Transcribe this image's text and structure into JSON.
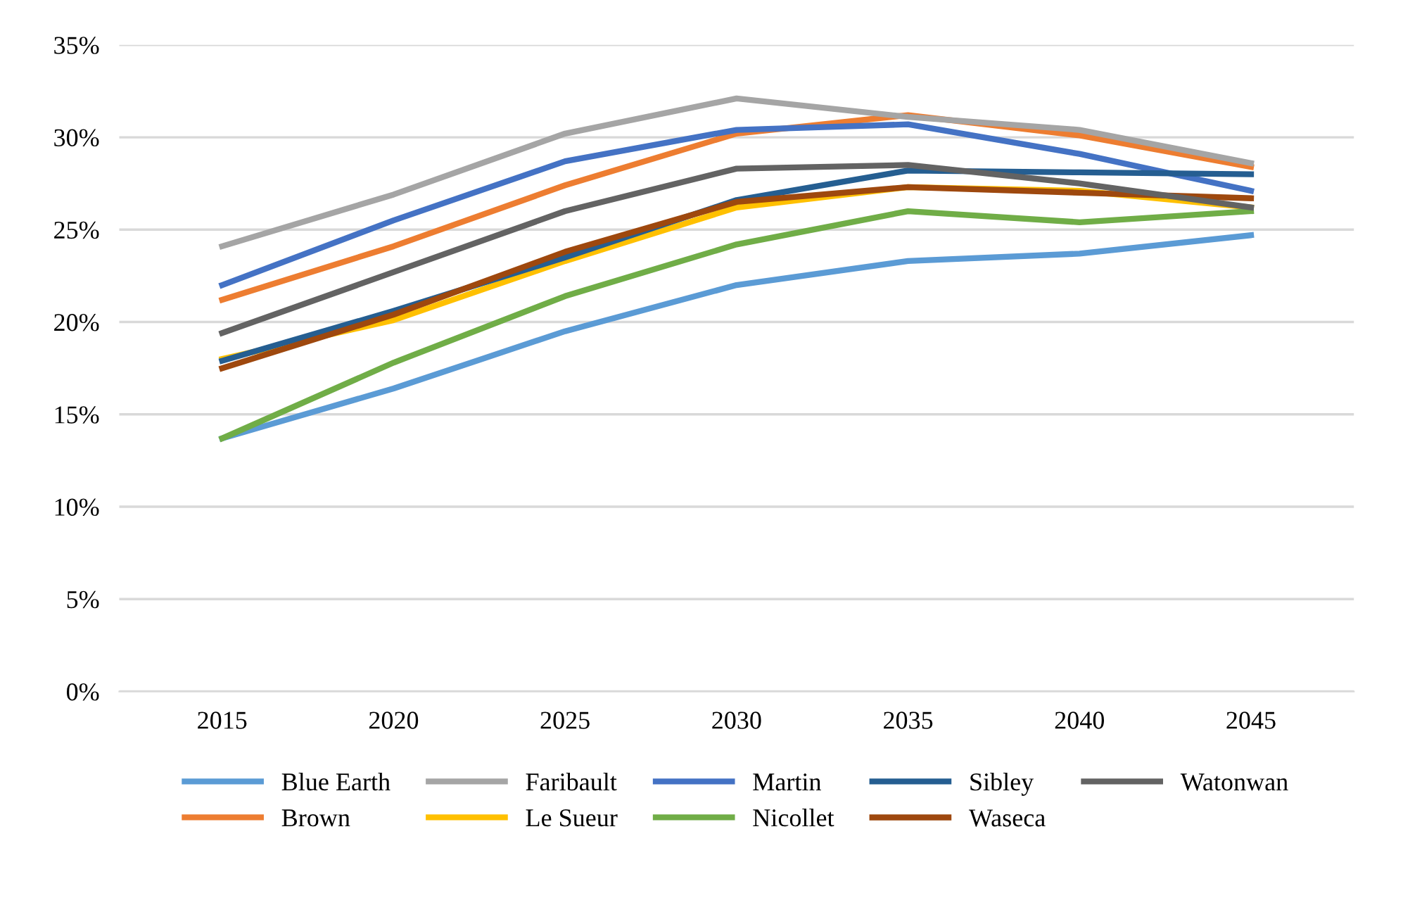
{
  "chart_data": {
    "type": "line",
    "categories": [
      "2015",
      "2020",
      "2025",
      "2030",
      "2035",
      "2040",
      "2045"
    ],
    "ylim": [
      0,
      35
    ],
    "yticks": [
      {
        "value": 0,
        "label": "0%"
      },
      {
        "value": 5,
        "label": "5%"
      },
      {
        "value": 10,
        "label": "10%"
      },
      {
        "value": 15,
        "label": "15%"
      },
      {
        "value": 20,
        "label": "20%"
      },
      {
        "value": 25,
        "label": "25%"
      },
      {
        "value": 30,
        "label": "30%"
      },
      {
        "value": 35,
        "label": "35%"
      }
    ],
    "grid": "y",
    "legend": "bottom",
    "marker": "none",
    "line_style": "solid",
    "series": [
      {
        "name": "Blue Earth",
        "color": "#5b9bd5",
        "values": [
          13.7,
          16.4,
          19.5,
          22.0,
          23.3,
          23.7,
          24.7
        ]
      },
      {
        "name": "Brown",
        "color": "#ed7d31",
        "values": [
          21.2,
          24.1,
          27.4,
          30.2,
          31.2,
          30.1,
          28.4
        ]
      },
      {
        "name": "Faribault",
        "color": "#a5a5a5",
        "values": [
          24.1,
          26.9,
          30.2,
          32.1,
          31.1,
          30.4,
          28.6
        ]
      },
      {
        "name": "Le Sueur",
        "color": "#ffc000",
        "values": [
          18.0,
          20.1,
          23.3,
          26.2,
          27.3,
          27.1,
          26.2
        ]
      },
      {
        "name": "Martin",
        "color": "#4472c4",
        "values": [
          22.0,
          25.5,
          28.7,
          30.4,
          30.7,
          29.1,
          27.1
        ]
      },
      {
        "name": "Nicollet",
        "color": "#70ad47",
        "values": [
          13.7,
          17.8,
          21.4,
          24.2,
          26.0,
          25.4,
          26.0
        ]
      },
      {
        "name": "Sibley",
        "color": "#255e91",
        "values": [
          17.9,
          20.6,
          23.5,
          26.6,
          28.2,
          28.1,
          28.0
        ]
      },
      {
        "name": "Waseca",
        "color": "#9e480e",
        "values": [
          17.5,
          20.4,
          23.8,
          26.5,
          27.3,
          27.0,
          26.7
        ]
      },
      {
        "name": "Watonwan",
        "color": "#636363",
        "values": [
          19.4,
          22.7,
          26.0,
          28.3,
          28.5,
          27.5,
          26.2
        ]
      }
    ]
  }
}
